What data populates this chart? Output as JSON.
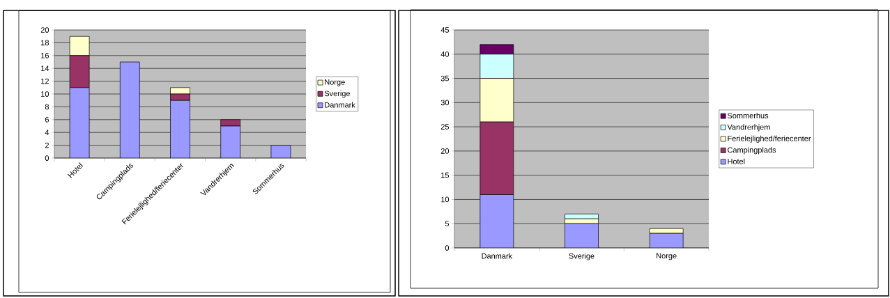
{
  "chart_data": [
    {
      "type": "bar",
      "stacked": true,
      "categories": [
        "Hotel",
        "Campingplads",
        "Ferielejlighed/feriecenter",
        "Vandrerhjem",
        "Sommerhus"
      ],
      "series": [
        {
          "name": "Danmark",
          "color": "#9999ff",
          "values": [
            11,
            15,
            9,
            5,
            2
          ]
        },
        {
          "name": "Sverige",
          "color": "#993366",
          "values": [
            5,
            0,
            1,
            1,
            0
          ]
        },
        {
          "name": "Norge",
          "color": "#ffffcc",
          "values": [
            3,
            0,
            1,
            0,
            0
          ]
        }
      ],
      "ylim": [
        0,
        20
      ],
      "yticks": [
        0,
        2,
        4,
        6,
        8,
        10,
        12,
        14,
        16,
        18,
        20
      ],
      "grid": "y",
      "legend": "right"
    },
    {
      "type": "bar",
      "stacked": true,
      "categories": [
        "Danmark",
        "Sverige",
        "Norge"
      ],
      "series": [
        {
          "name": "Hotel",
          "color": "#9999ff",
          "values": [
            11,
            5,
            3
          ]
        },
        {
          "name": "Campingplads",
          "color": "#993366",
          "values": [
            15,
            0,
            0
          ]
        },
        {
          "name": "Ferielejlighed/feriecenter",
          "color": "#ffffcc",
          "values": [
            9,
            1,
            1
          ]
        },
        {
          "name": "Vandrerhjem",
          "color": "#ccffff",
          "values": [
            5,
            1,
            0
          ]
        },
        {
          "name": "Sommerhus",
          "color": "#660066",
          "values": [
            2,
            0,
            0
          ]
        }
      ],
      "ylim": [
        0,
        45
      ],
      "yticks": [
        0,
        5,
        10,
        15,
        20,
        25,
        30,
        35,
        40,
        45
      ],
      "grid": "y",
      "legend": "right"
    }
  ]
}
